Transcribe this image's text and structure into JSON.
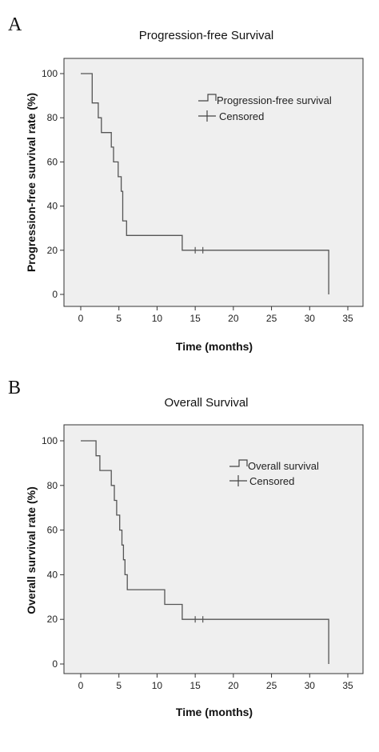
{
  "chart_data": [
    {
      "type": "line",
      "panel_label": "A",
      "title": "Progression-free Survival",
      "xlabel": "Time (months)",
      "ylabel": "Progression-free survival rate (%)",
      "xlim": [
        0,
        35
      ],
      "ylim": [
        0,
        100
      ],
      "x_ticks": [
        0,
        5,
        10,
        15,
        20,
        25,
        30,
        35
      ],
      "y_ticks": [
        0,
        20,
        40,
        60,
        80,
        100
      ],
      "legend_position": "top-right",
      "legend": [
        "Progression-free survival",
        "Censored"
      ],
      "series": [
        {
          "name": "Progression-free survival",
          "style": "step",
          "points": [
            [
              0,
              100
            ],
            [
              1.5,
              100
            ],
            [
              1.5,
              86.7
            ],
            [
              2.3,
              86.7
            ],
            [
              2.3,
              80
            ],
            [
              2.7,
              80
            ],
            [
              2.7,
              73.3
            ],
            [
              4.0,
              73.3
            ],
            [
              4.0,
              66.7
            ],
            [
              4.3,
              66.7
            ],
            [
              4.3,
              60
            ],
            [
              4.9,
              60
            ],
            [
              4.9,
              53.3
            ],
            [
              5.3,
              53.3
            ],
            [
              5.3,
              46.7
            ],
            [
              5.5,
              46.7
            ],
            [
              5.5,
              33.3
            ],
            [
              6.0,
              33.3
            ],
            [
              6.0,
              26.7
            ],
            [
              13.3,
              26.7
            ],
            [
              13.3,
              20
            ],
            [
              32.5,
              20
            ],
            [
              32.5,
              0
            ]
          ]
        },
        {
          "name": "Censored",
          "style": "censor",
          "points": [
            [
              15.0,
              20
            ],
            [
              16.0,
              20
            ]
          ]
        }
      ]
    },
    {
      "type": "line",
      "panel_label": "B",
      "title": "Overall Survival",
      "xlabel": "Time (months)",
      "ylabel": "Overall survival rate (%)",
      "xlim": [
        0,
        35
      ],
      "ylim": [
        0,
        100
      ],
      "x_ticks": [
        0,
        5,
        10,
        15,
        20,
        25,
        30,
        35
      ],
      "y_ticks": [
        0,
        20,
        40,
        60,
        80,
        100
      ],
      "legend_position": "top-right",
      "legend": [
        "Overall survival",
        "Censored"
      ],
      "series": [
        {
          "name": "Overall survival",
          "style": "step",
          "points": [
            [
              0,
              100
            ],
            [
              2.0,
              100
            ],
            [
              2.0,
              93.3
            ],
            [
              2.5,
              93.3
            ],
            [
              2.5,
              86.7
            ],
            [
              4.0,
              86.7
            ],
            [
              4.0,
              80
            ],
            [
              4.4,
              80
            ],
            [
              4.4,
              73.3
            ],
            [
              4.7,
              73.3
            ],
            [
              4.7,
              66.7
            ],
            [
              5.1,
              66.7
            ],
            [
              5.1,
              60
            ],
            [
              5.4,
              60
            ],
            [
              5.4,
              53.3
            ],
            [
              5.6,
              53.3
            ],
            [
              5.6,
              46.7
            ],
            [
              5.8,
              46.7
            ],
            [
              5.8,
              40
            ],
            [
              6.1,
              40
            ],
            [
              6.1,
              33.3
            ],
            [
              11.0,
              33.3
            ],
            [
              11.0,
              26.7
            ],
            [
              13.3,
              26.7
            ],
            [
              13.3,
              20
            ],
            [
              32.5,
              20
            ],
            [
              32.5,
              0
            ]
          ]
        },
        {
          "name": "Censored",
          "style": "censor",
          "points": [
            [
              15.0,
              20
            ],
            [
              16.0,
              20
            ]
          ]
        }
      ]
    }
  ]
}
